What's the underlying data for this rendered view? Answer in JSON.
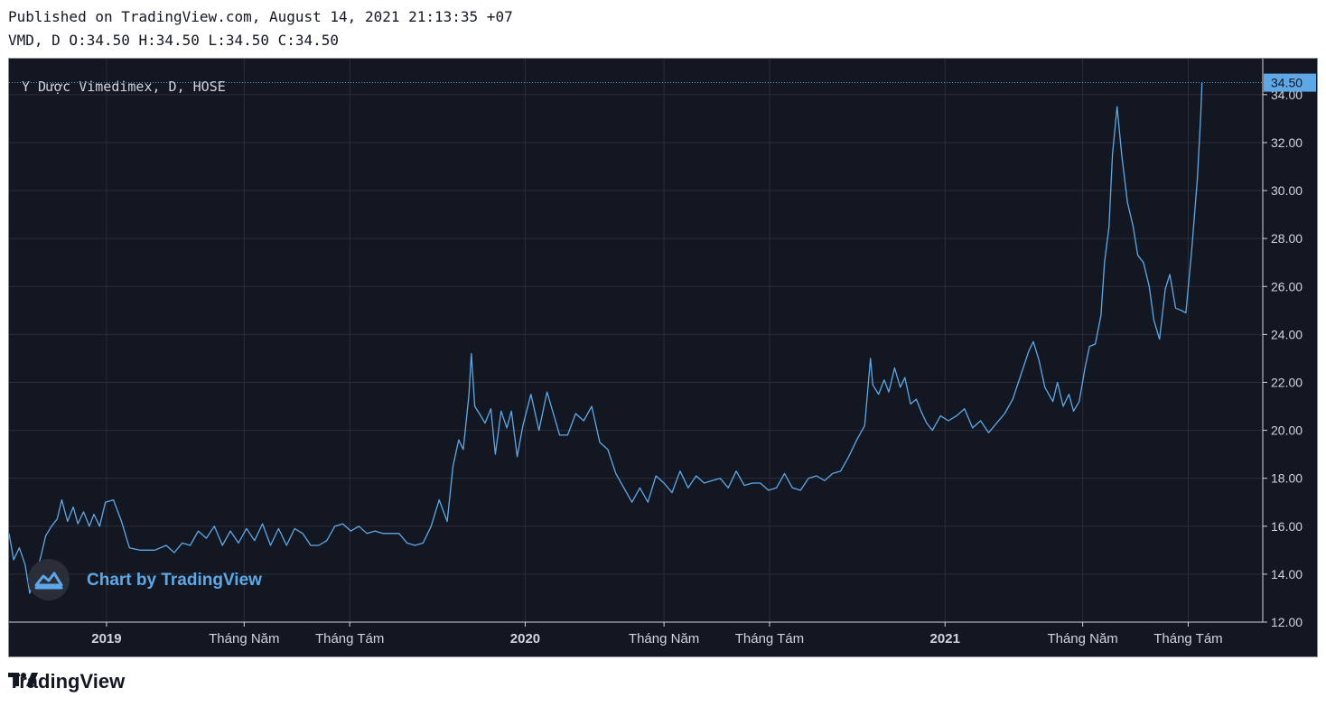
{
  "header": {
    "published": "Published on TradingView.com, August 14, 2021 21:13:35 +07",
    "ohlc": "VMD, D O:34.50 H:34.50 L:34.50 C:34.50"
  },
  "colors": {
    "background": "#131722",
    "line": "#5fa8e8",
    "grid": "#2a2e39",
    "axis_text": "#d1d4dc",
    "price_tag": "#5fa8e8"
  },
  "watermark": {
    "label": "Chart by TradingView",
    "icon": "tradingview-cloud-icon"
  },
  "footer": {
    "brand": "TradingView",
    "icon": "tradingview-logo-icon"
  },
  "chart_data": {
    "type": "line",
    "title": "Y Dược Vimedimex, D, HOSE",
    "last_price_label": "34.50",
    "ylim": [
      12,
      35.5
    ],
    "y_ticks": [
      "12.00",
      "14.00",
      "16.00",
      "18.00",
      "20.00",
      "22.00",
      "24.00",
      "26.00",
      "28.00",
      "30.00",
      "32.00",
      "34.00"
    ],
    "x_ticks": [
      {
        "label": "2019",
        "bold": true
      },
      {
        "label": "Tháng Năm",
        "bold": false
      },
      {
        "label": "Tháng Tám",
        "bold": false
      },
      {
        "label": "2020",
        "bold": true
      },
      {
        "label": "Tháng Năm",
        "bold": false
      },
      {
        "label": "Tháng Tám",
        "bold": false
      },
      {
        "label": "2021",
        "bold": true
      },
      {
        "label": "Tháng Năm",
        "bold": false
      },
      {
        "label": "Tháng Tám",
        "bold": false
      }
    ],
    "x_tick_dates": [
      "2019-01-01",
      "2019-05-01",
      "2019-08-01",
      "2020-01-01",
      "2020-05-01",
      "2020-08-01",
      "2021-01-01",
      "2021-05-01",
      "2021-08-01"
    ],
    "xlim": [
      "2018-10-08",
      "2021-10-05"
    ],
    "series": [
      {
        "points": [
          [
            "2018-10-08",
            15.7
          ],
          [
            "2018-10-12",
            14.6
          ],
          [
            "2018-10-17",
            15.1
          ],
          [
            "2018-10-22",
            14.4
          ],
          [
            "2018-10-26",
            13.2
          ],
          [
            "2018-10-31",
            13.9
          ],
          [
            "2018-11-05",
            14.8
          ],
          [
            "2018-11-09",
            15.6
          ],
          [
            "2018-11-14",
            16.0
          ],
          [
            "2018-11-19",
            16.3
          ],
          [
            "2018-11-23",
            17.1
          ],
          [
            "2018-11-28",
            16.2
          ],
          [
            "2018-12-03",
            16.8
          ],
          [
            "2018-12-07",
            16.1
          ],
          [
            "2018-12-12",
            16.6
          ],
          [
            "2018-12-17",
            16.0
          ],
          [
            "2018-12-21",
            16.5
          ],
          [
            "2018-12-26",
            16.0
          ],
          [
            "2018-12-31",
            17.0
          ],
          [
            "2019-01-07",
            17.1
          ],
          [
            "2019-01-14",
            16.2
          ],
          [
            "2019-01-21",
            15.1
          ],
          [
            "2019-01-30",
            15.0
          ],
          [
            "2019-02-12",
            15.0
          ],
          [
            "2019-02-22",
            15.2
          ],
          [
            "2019-03-01",
            14.9
          ],
          [
            "2019-03-08",
            15.3
          ],
          [
            "2019-03-15",
            15.2
          ],
          [
            "2019-03-22",
            15.8
          ],
          [
            "2019-03-29",
            15.5
          ],
          [
            "2019-04-05",
            16.0
          ],
          [
            "2019-04-12",
            15.2
          ],
          [
            "2019-04-19",
            15.8
          ],
          [
            "2019-04-26",
            15.3
          ],
          [
            "2019-05-03",
            15.9
          ],
          [
            "2019-05-10",
            15.4
          ],
          [
            "2019-05-17",
            16.1
          ],
          [
            "2019-05-24",
            15.2
          ],
          [
            "2019-05-31",
            15.9
          ],
          [
            "2019-06-07",
            15.2
          ],
          [
            "2019-06-14",
            15.9
          ],
          [
            "2019-06-21",
            15.7
          ],
          [
            "2019-06-28",
            15.2
          ],
          [
            "2019-07-05",
            15.2
          ],
          [
            "2019-07-12",
            15.4
          ],
          [
            "2019-07-19",
            16.0
          ],
          [
            "2019-07-26",
            16.1
          ],
          [
            "2019-08-02",
            15.8
          ],
          [
            "2019-08-09",
            16.0
          ],
          [
            "2019-08-16",
            15.7
          ],
          [
            "2019-08-23",
            15.8
          ],
          [
            "2019-08-30",
            15.7
          ],
          [
            "2019-09-06",
            15.7
          ],
          [
            "2019-09-13",
            15.7
          ],
          [
            "2019-09-20",
            15.3
          ],
          [
            "2019-09-27",
            15.2
          ],
          [
            "2019-10-04",
            15.3
          ],
          [
            "2019-10-11",
            16.0
          ],
          [
            "2019-10-18",
            17.1
          ],
          [
            "2019-10-25",
            16.2
          ],
          [
            "2019-10-30",
            18.5
          ],
          [
            "2019-11-04",
            19.6
          ],
          [
            "2019-11-08",
            19.2
          ],
          [
            "2019-11-13",
            21.5
          ],
          [
            "2019-11-15",
            23.2
          ],
          [
            "2019-11-18",
            21.0
          ],
          [
            "2019-11-22",
            20.7
          ],
          [
            "2019-11-27",
            20.3
          ],
          [
            "2019-12-02",
            20.9
          ],
          [
            "2019-12-06",
            19.0
          ],
          [
            "2019-12-11",
            20.8
          ],
          [
            "2019-12-16",
            20.1
          ],
          [
            "2019-12-20",
            20.8
          ],
          [
            "2019-12-25",
            18.9
          ],
          [
            "2019-12-30",
            20.2
          ],
          [
            "2020-01-06",
            21.5
          ],
          [
            "2020-01-13",
            20.0
          ],
          [
            "2020-01-20",
            21.6
          ],
          [
            "2020-01-31",
            19.8
          ],
          [
            "2020-02-07",
            19.8
          ],
          [
            "2020-02-14",
            20.7
          ],
          [
            "2020-02-21",
            20.4
          ],
          [
            "2020-02-28",
            21.0
          ],
          [
            "2020-03-06",
            19.5
          ],
          [
            "2020-03-13",
            19.2
          ],
          [
            "2020-03-20",
            18.2
          ],
          [
            "2020-03-27",
            17.6
          ],
          [
            "2020-04-03",
            17.0
          ],
          [
            "2020-04-10",
            17.6
          ],
          [
            "2020-04-17",
            17.0
          ],
          [
            "2020-04-24",
            18.1
          ],
          [
            "2020-05-01",
            17.8
          ],
          [
            "2020-05-08",
            17.4
          ],
          [
            "2020-05-15",
            18.3
          ],
          [
            "2020-05-22",
            17.6
          ],
          [
            "2020-05-29",
            18.1
          ],
          [
            "2020-06-05",
            17.8
          ],
          [
            "2020-06-12",
            17.9
          ],
          [
            "2020-06-19",
            18.0
          ],
          [
            "2020-06-26",
            17.6
          ],
          [
            "2020-07-03",
            18.3
          ],
          [
            "2020-07-10",
            17.7
          ],
          [
            "2020-07-17",
            17.8
          ],
          [
            "2020-07-24",
            17.8
          ],
          [
            "2020-07-31",
            17.5
          ],
          [
            "2020-08-07",
            17.6
          ],
          [
            "2020-08-14",
            18.2
          ],
          [
            "2020-08-21",
            17.6
          ],
          [
            "2020-08-28",
            17.5
          ],
          [
            "2020-09-04",
            18.0
          ],
          [
            "2020-09-11",
            18.1
          ],
          [
            "2020-09-18",
            17.9
          ],
          [
            "2020-09-25",
            18.2
          ],
          [
            "2020-10-02",
            18.3
          ],
          [
            "2020-10-09",
            18.9
          ],
          [
            "2020-10-16",
            19.6
          ],
          [
            "2020-10-23",
            20.2
          ],
          [
            "2020-10-28",
            23.0
          ],
          [
            "2020-10-30",
            21.9
          ],
          [
            "2020-11-04",
            21.5
          ],
          [
            "2020-11-09",
            22.1
          ],
          [
            "2020-11-13",
            21.6
          ],
          [
            "2020-11-18",
            22.6
          ],
          [
            "2020-11-23",
            21.8
          ],
          [
            "2020-11-27",
            22.2
          ],
          [
            "2020-12-02",
            21.1
          ],
          [
            "2020-12-07",
            21.3
          ],
          [
            "2020-12-11",
            20.8
          ],
          [
            "2020-12-16",
            20.3
          ],
          [
            "2020-12-21",
            20.0
          ],
          [
            "2020-12-28",
            20.6
          ],
          [
            "2021-01-04",
            20.4
          ],
          [
            "2021-01-11",
            20.6
          ],
          [
            "2021-01-18",
            20.9
          ],
          [
            "2021-01-25",
            20.1
          ],
          [
            "2021-02-01",
            20.4
          ],
          [
            "2021-02-08",
            19.9
          ],
          [
            "2021-02-15",
            20.3
          ],
          [
            "2021-02-22",
            20.7
          ],
          [
            "2021-03-01",
            21.3
          ],
          [
            "2021-03-08",
            22.3
          ],
          [
            "2021-03-15",
            23.3
          ],
          [
            "2021-03-19",
            23.7
          ],
          [
            "2021-03-24",
            22.9
          ],
          [
            "2021-03-29",
            21.8
          ],
          [
            "2021-04-05",
            21.2
          ],
          [
            "2021-04-09",
            22.0
          ],
          [
            "2021-04-14",
            21.0
          ],
          [
            "2021-04-19",
            21.5
          ],
          [
            "2021-04-23",
            20.8
          ],
          [
            "2021-04-28",
            21.2
          ],
          [
            "2021-05-03",
            22.6
          ],
          [
            "2021-05-07",
            23.5
          ],
          [
            "2021-05-12",
            23.6
          ],
          [
            "2021-05-17",
            24.8
          ],
          [
            "2021-05-20",
            27.0
          ],
          [
            "2021-05-24",
            28.5
          ],
          [
            "2021-05-27",
            31.5
          ],
          [
            "2021-05-31",
            33.5
          ],
          [
            "2021-06-04",
            31.5
          ],
          [
            "2021-06-09",
            29.5
          ],
          [
            "2021-06-14",
            28.5
          ],
          [
            "2021-06-18",
            27.3
          ],
          [
            "2021-06-23",
            27.0
          ],
          [
            "2021-06-28",
            26.0
          ],
          [
            "2021-07-02",
            24.6
          ],
          [
            "2021-07-07",
            23.8
          ],
          [
            "2021-07-12",
            25.9
          ],
          [
            "2021-07-16",
            26.5
          ],
          [
            "2021-07-21",
            25.1
          ],
          [
            "2021-07-26",
            25.0
          ],
          [
            "2021-07-30",
            24.9
          ],
          [
            "2021-08-04",
            27.5
          ],
          [
            "2021-08-09",
            30.5
          ],
          [
            "2021-08-12",
            33.2
          ],
          [
            "2021-08-13",
            34.5
          ]
        ]
      }
    ]
  }
}
